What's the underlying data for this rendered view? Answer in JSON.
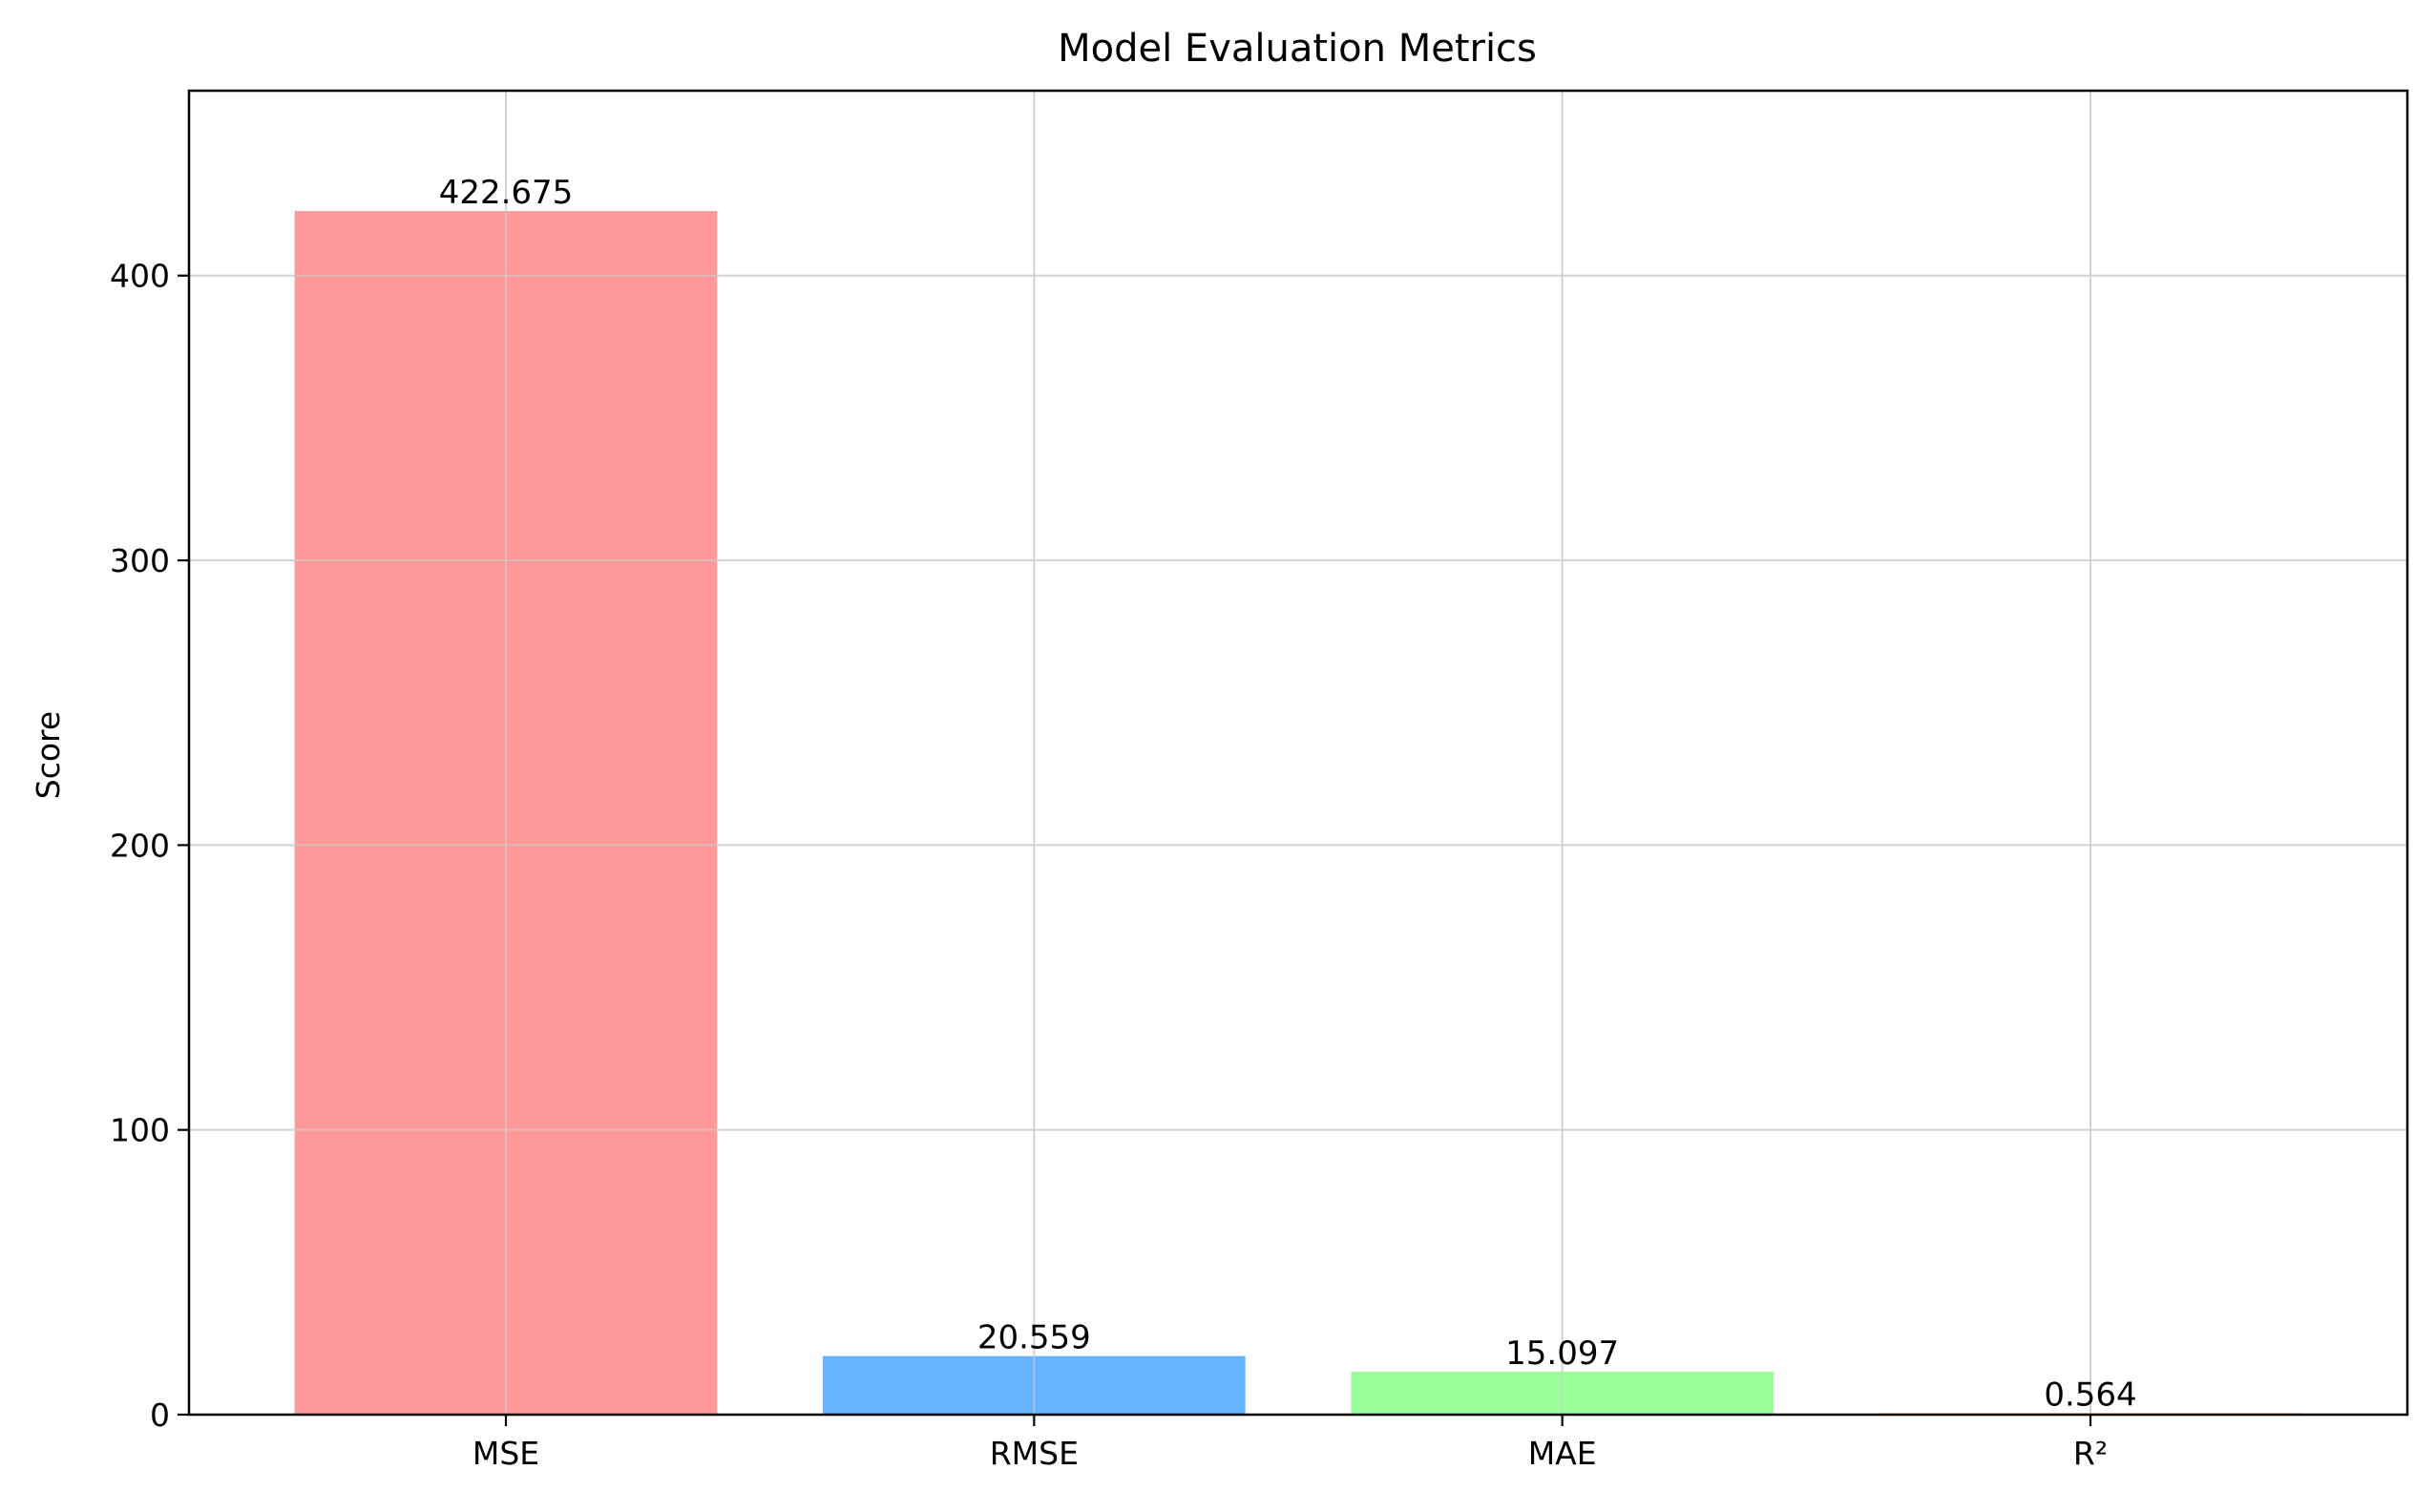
{
  "chart_data": {
    "type": "bar",
    "title": "Model Evaluation Metrics",
    "xlabel": "",
    "ylabel": "Score",
    "categories": [
      "MSE",
      "RMSE",
      "MAE",
      "R²"
    ],
    "values": [
      422.675,
      20.559,
      15.097,
      0.564
    ],
    "value_labels": [
      "422.675",
      "20.559",
      "15.097",
      "0.564"
    ],
    "colors": [
      "#ff9999",
      "#66b3ff",
      "#99ff99",
      "#ffcc99"
    ],
    "ylim": [
      0,
      464.94
    ],
    "yticks": [
      0,
      100,
      200,
      300,
      400
    ],
    "ytick_labels": [
      "0",
      "100",
      "200",
      "300",
      "400"
    ],
    "grid": true,
    "legend": "none"
  }
}
